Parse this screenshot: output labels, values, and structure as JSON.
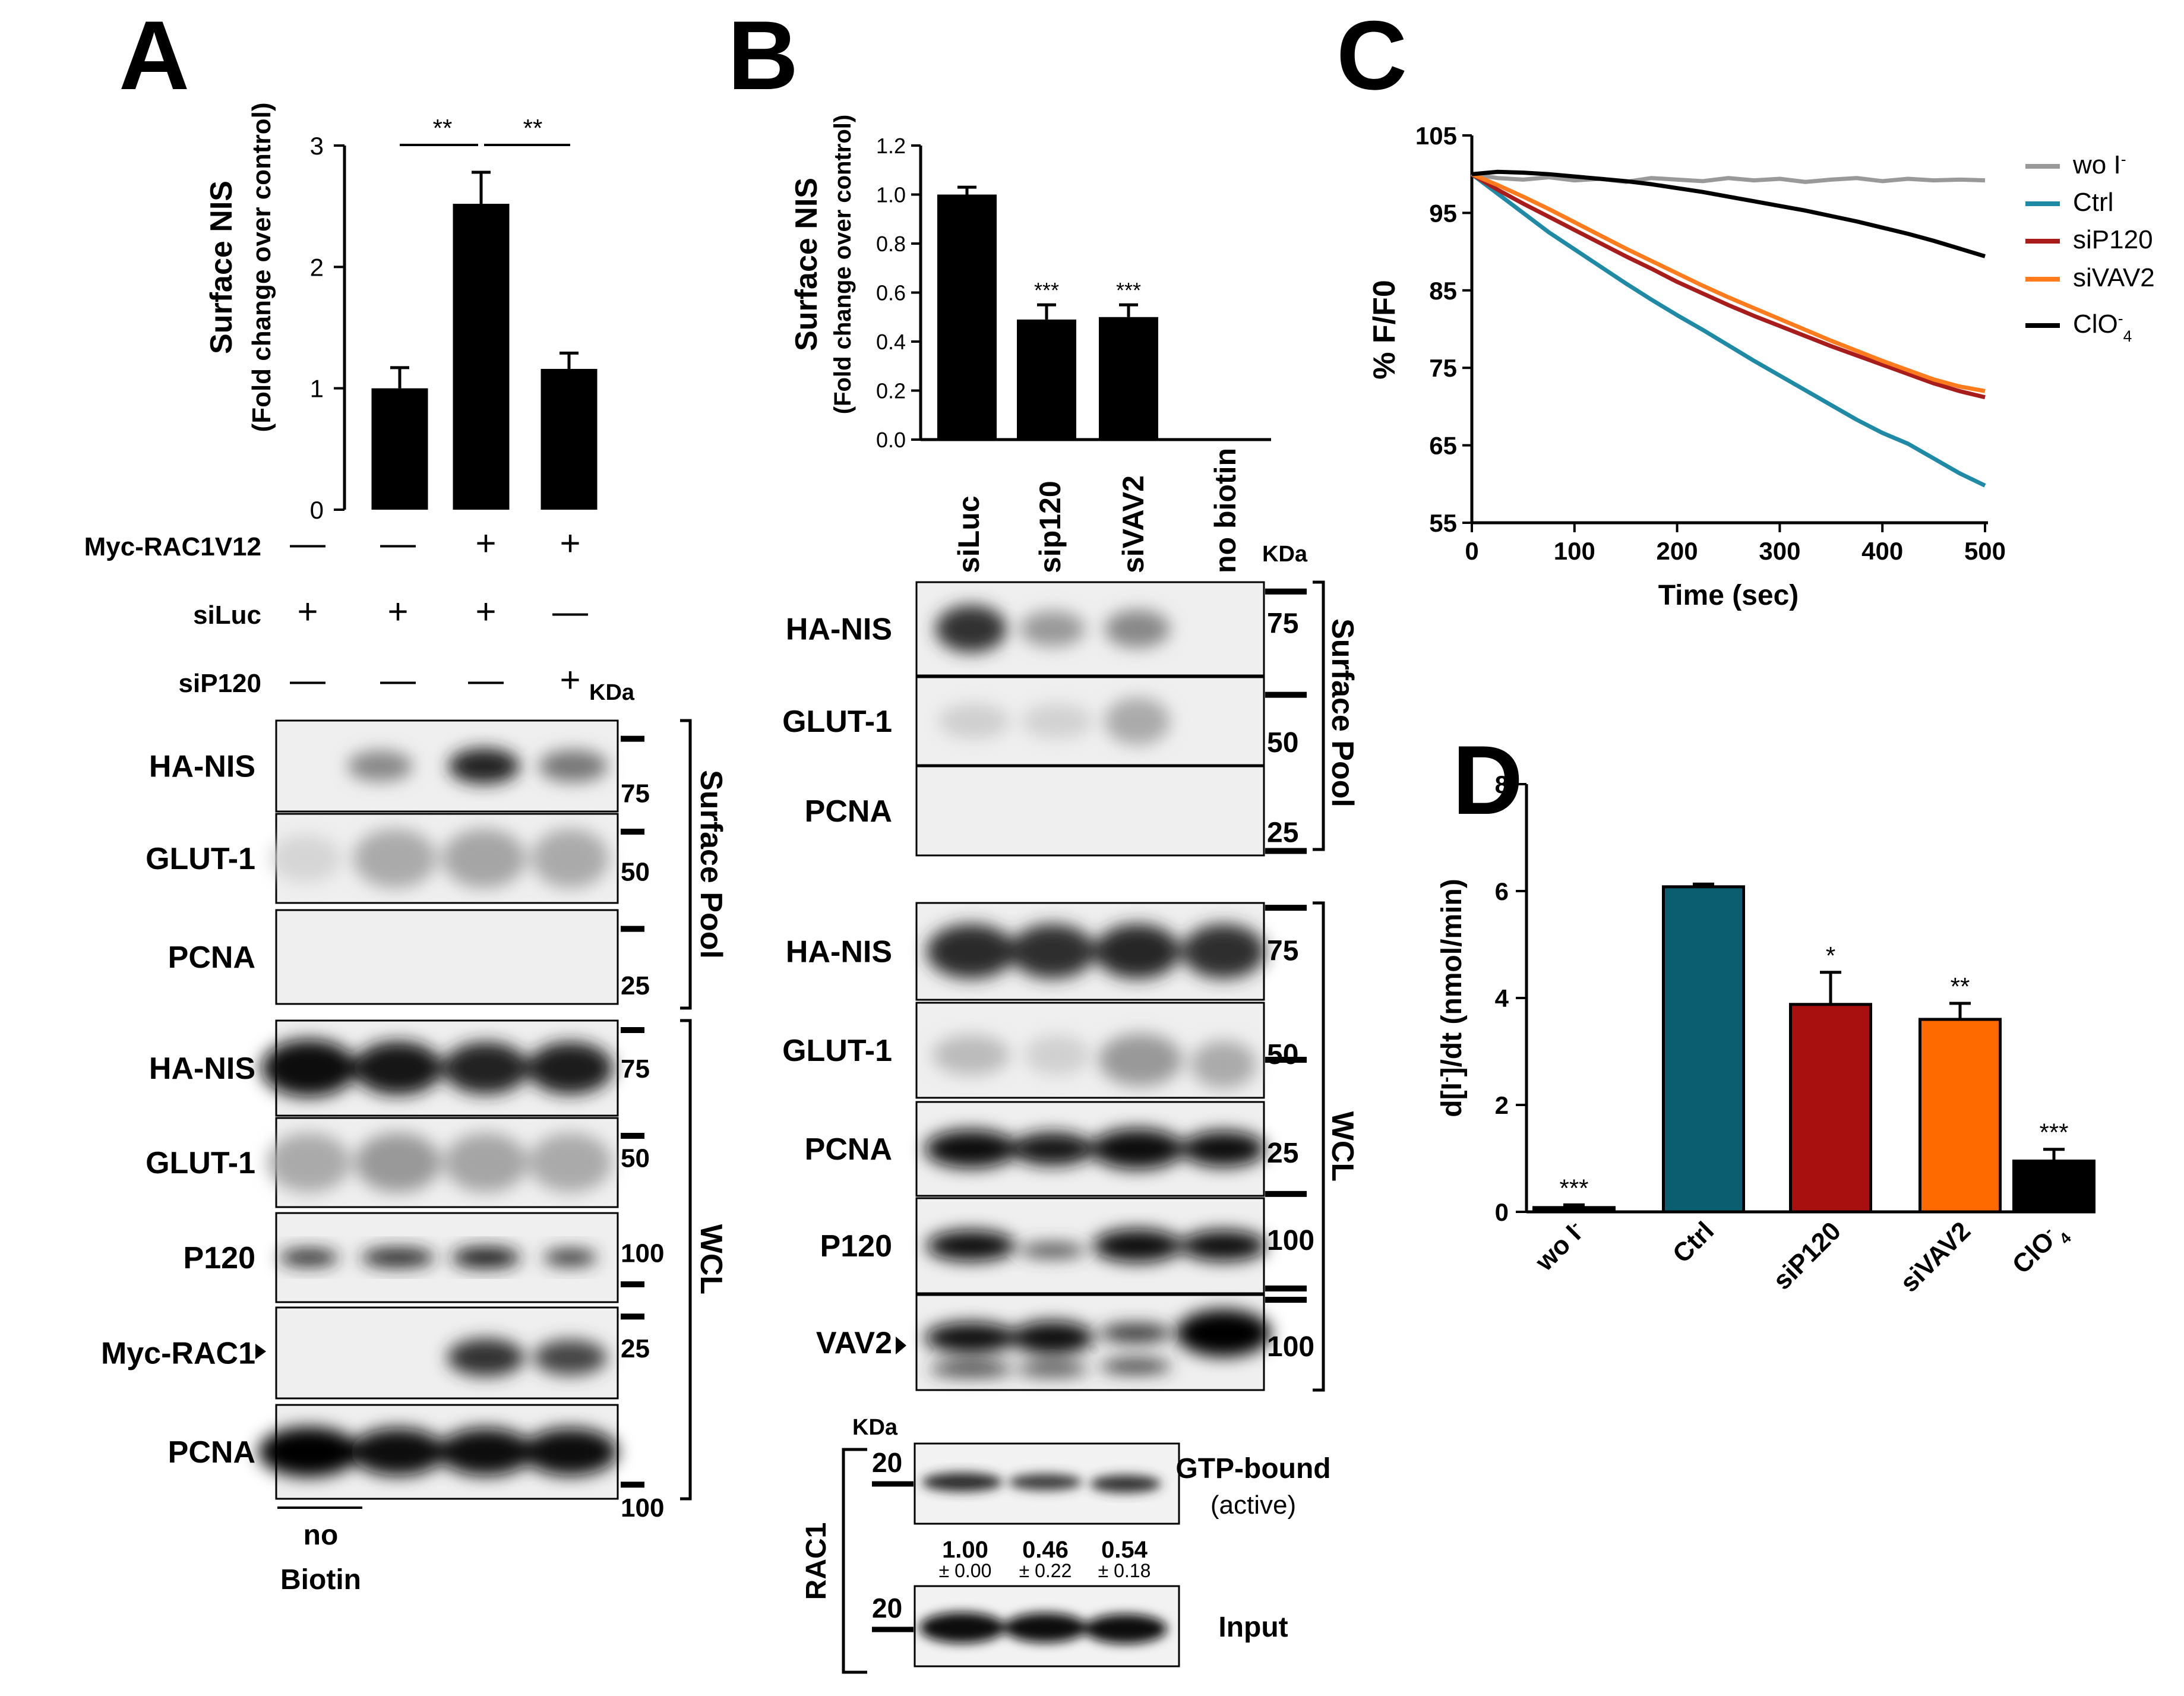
{
  "panels": {
    "a": "A",
    "b": "B",
    "c": "C",
    "d": "D"
  },
  "colors": {
    "wo": "#999999",
    "ctrl": "#1f8aa6",
    "sip120": "#a81c1c",
    "sivav2": "#ff7b1c",
    "clo4": "#000000",
    "ctrl_bar": "#0b5e70",
    "sip120_bar": "#a80f0f",
    "sivav2_bar": "#ff6a00"
  },
  "panelA": {
    "conditions": {
      "myc_label": "Myc-RAC1V12",
      "siluc_label": "siLuc",
      "sip120_label": "siP120",
      "myc": [
        "—",
        "—",
        "+",
        "+"
      ],
      "siluc": [
        "+",
        "+",
        "+",
        "—"
      ],
      "sip120": [
        "—",
        "—",
        "—",
        "+"
      ]
    },
    "blots": [
      "HA-NIS",
      "GLUT-1",
      "PCNA",
      "HA-NIS",
      "GLUT-1",
      "P120",
      "Myc-RAC1",
      "PCNA"
    ],
    "marks": [
      "75",
      "50",
      "25",
      "75",
      "50",
      "100",
      "25",
      "100"
    ],
    "kda": "KDa",
    "surface_pool": "Surface Pool",
    "wcl": "WCL",
    "no_biotin_line1": "no",
    "no_biotin_line2": "Biotin"
  },
  "panelB": {
    "lanes": [
      "siLuc",
      "sip120",
      "siVAV2",
      "no biotin"
    ],
    "kda": "KDa",
    "blots": [
      "HA-NIS",
      "GLUT-1",
      "PCNA",
      "HA-NIS",
      "GLUT-1",
      "PCNA",
      "P120",
      "VAV2"
    ],
    "marks": [
      "75",
      "50",
      "25",
      "75",
      "50",
      "25",
      "100",
      "100"
    ],
    "surface_pool": "Surface Pool",
    "wcl": "WCL",
    "rac1": {
      "kda": "KDa",
      "label": "RAC1",
      "mark_top": "20",
      "mark_bottom": "20",
      "gtp_label": "GTP-bound",
      "active_label": "(active)",
      "input_label": "Input",
      "quant": [
        "1.00",
        "0.46",
        "0.54"
      ],
      "sd": [
        "± 0.00",
        "± 0.22",
        "± 0.18"
      ]
    }
  },
  "chart_data": [
    {
      "id": "A",
      "type": "bar",
      "ylabel": "Surface NIS",
      "ylabel2": "(Fold change over control)",
      "ylim": [
        0,
        3
      ],
      "yticks": [
        "0",
        "1",
        "2",
        "3"
      ],
      "values": [
        1.0,
        2.52,
        1.16
      ],
      "errors": [
        0.17,
        0.26,
        0.13
      ],
      "significance": [
        "**",
        "**"
      ]
    },
    {
      "id": "B",
      "type": "bar",
      "ylabel": "Surface NIS",
      "ylabel2": "(Fold change over control)",
      "ylim": [
        0,
        1.2
      ],
      "yticks": [
        "0.0",
        "0.2",
        "0.4",
        "0.6",
        "0.8",
        "1.0",
        "1.2"
      ],
      "values": [
        1.0,
        0.49,
        0.5
      ],
      "errors": [
        0.03,
        0.06,
        0.05
      ],
      "significance": [
        "",
        "***",
        "***"
      ]
    },
    {
      "id": "C",
      "type": "line",
      "xlabel": "Time (sec)",
      "ylabel": "% F/F0",
      "xlim": [
        0,
        500
      ],
      "ylim": [
        55,
        105
      ],
      "xticks": [
        "0",
        "100",
        "200",
        "300",
        "400",
        "500"
      ],
      "yticks": [
        "55",
        "65",
        "75",
        "85",
        "95",
        "105"
      ],
      "legend_position": "right",
      "x": [
        0,
        25,
        50,
        75,
        100,
        125,
        150,
        175,
        200,
        225,
        250,
        275,
        300,
        325,
        350,
        375,
        400,
        425,
        450,
        475,
        500
      ],
      "series": [
        {
          "key": "wo",
          "name": "wo I",
          "sup": "-",
          "sub": "",
          "rest": "",
          "values": [
            100,
            99.5,
            99.3,
            99.6,
            99.2,
            99.4,
            99.0,
            99.5,
            99.3,
            99.1,
            99.5,
            99.2,
            99.4,
            99.0,
            99.3,
            99.5,
            99.1,
            99.4,
            99.2,
            99.3,
            99.2
          ]
        },
        {
          "key": "ctrl",
          "name": "Ctrl",
          "sup": "",
          "sub": "",
          "rest": "",
          "values": [
            100,
            97.5,
            95,
            92.5,
            90.3,
            88.1,
            85.9,
            83.8,
            81.8,
            79.9,
            77.9,
            75.9,
            74.0,
            72.1,
            70.2,
            68.3,
            66.6,
            65.2,
            63.3,
            61.4,
            59.8
          ]
        },
        {
          "key": "sip120",
          "name": "siP120",
          "sup": "",
          "sub": "",
          "rest": "",
          "values": [
            100,
            98.0,
            96.2,
            94.5,
            92.8,
            91.1,
            89.4,
            87.8,
            86.1,
            84.6,
            83.1,
            81.7,
            80.4,
            79.1,
            77.8,
            76.6,
            75.4,
            74.2,
            73.0,
            72.0,
            71.2
          ]
        },
        {
          "key": "sivav2",
          "name": "siVAV2",
          "sup": "",
          "sub": "",
          "rest": "",
          "values": [
            100,
            98.6,
            97.1,
            95.5,
            93.8,
            92.1,
            90.4,
            88.8,
            87.2,
            85.6,
            84.1,
            82.7,
            81.3,
            79.9,
            78.5,
            77.2,
            75.9,
            74.7,
            73.5,
            72.6,
            72.0
          ]
        },
        {
          "key": "clo4",
          "name": "ClO",
          "sup": "-",
          "sub": "4",
          "rest": "",
          "values": [
            100,
            100.3,
            100.2,
            100,
            99.7,
            99.4,
            99.1,
            98.7,
            98.2,
            97.7,
            97.1,
            96.5,
            95.9,
            95.3,
            94.6,
            93.9,
            93.1,
            92.3,
            91.4,
            90.4,
            89.4
          ]
        }
      ]
    },
    {
      "id": "D",
      "type": "bar",
      "ylabel_main": "d[I",
      "ylabel_sup": "-",
      "ylabel_rest": "]/dt (nmol/min)",
      "ylim": [
        0,
        8
      ],
      "yticks": [
        "0",
        "2",
        "4",
        "6",
        "8"
      ],
      "categories": [
        {
          "main": "wo I",
          "sup": "-",
          "sub": ""
        },
        {
          "main": "Ctrl",
          "sup": "",
          "sub": ""
        },
        {
          "main": "siP120",
          "sup": "",
          "sub": ""
        },
        {
          "main": "siVAV2",
          "sup": "",
          "sub": ""
        },
        {
          "main": "ClO",
          "sup": "-",
          "sub": "4"
        }
      ],
      "values": [
        0.08,
        6.08,
        3.88,
        3.6,
        0.95
      ],
      "errors": [
        0.05,
        0.05,
        0.6,
        0.3,
        0.22
      ],
      "significance": [
        "***",
        "",
        "*",
        "**",
        "***"
      ]
    }
  ]
}
